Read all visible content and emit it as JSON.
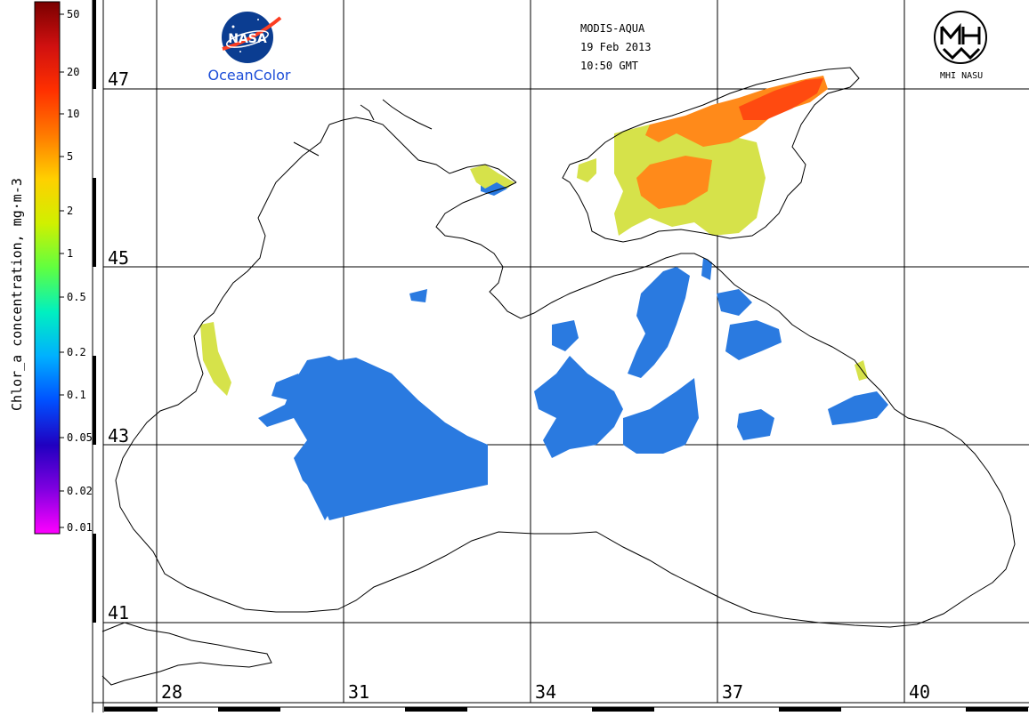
{
  "header": {
    "sensor": "MODIS-AQUA",
    "date": "19 Feb 2013",
    "time": "10:50 GMT"
  },
  "logos": {
    "nasa_text": "NASA",
    "oceancolor_text": "OceanColor",
    "mhi_text": "MHI NASU"
  },
  "colorbar": {
    "title": "Chlor_a concentration, mg·m-3",
    "ticks": [
      "50",
      "20",
      "10",
      "5",
      "2",
      "1",
      "0.5",
      "0.2",
      "0.1",
      "0.05",
      "0.02",
      "0.01"
    ],
    "colors": [
      "#7a0000",
      "#d01010",
      "#ff3000",
      "#ff7a00",
      "#ffd000",
      "#d0f000",
      "#60ff40",
      "#00f0c0",
      "#00b0ff",
      "#0050ff",
      "#2000c0",
      "#8000e0",
      "#ff00ff"
    ]
  },
  "grid": {
    "latitudes": [
      "47",
      "45",
      "43",
      "41"
    ],
    "longitudes": [
      "28",
      "31",
      "34",
      "37",
      "40"
    ]
  },
  "colors": {
    "low_chl": "#2a7ae0",
    "mid_chl": "#e6e030",
    "high_chl": "#ff6a10",
    "coast": "#000000"
  }
}
